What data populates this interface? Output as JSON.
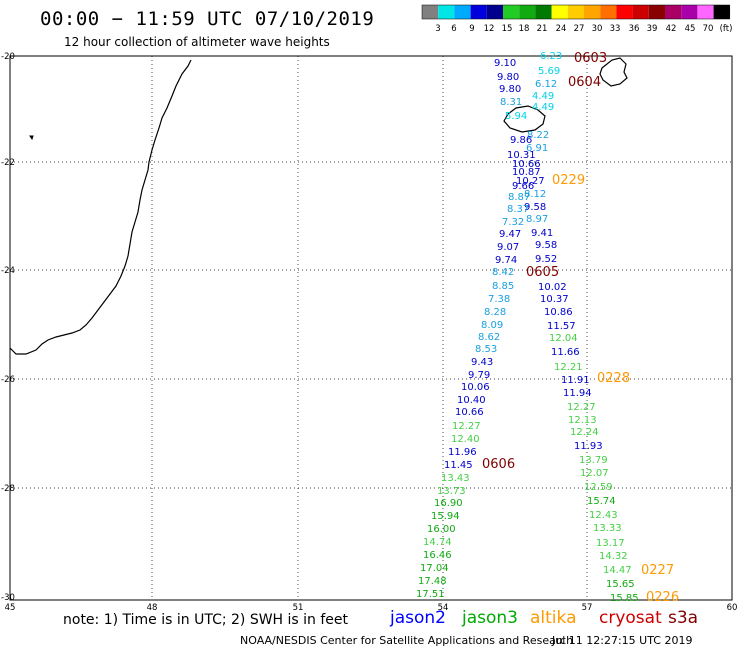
{
  "header": {
    "title": "00:00 − 11:59 UTC 07/10/2019",
    "subtitle": "12 hour collection of altimeter wave heights"
  },
  "legend": {
    "swatches": [
      "#808080",
      "#00e5e5",
      "#00aaff",
      "#0000dd",
      "#00008f",
      "#22cc22",
      "#11aa11",
      "#007a00",
      "#ffff00",
      "#ffcc00",
      "#ffa500",
      "#ff7000",
      "#ff0000",
      "#cc0000",
      "#880000",
      "#aa0066",
      "#aa00aa",
      "#ff66ff",
      "#000000"
    ],
    "ticks": [
      "3",
      "6",
      "9",
      "12",
      "15",
      "18",
      "21",
      "24",
      "27",
      "30",
      "33",
      "36",
      "39",
      "42",
      "45",
      "70",
      "(ft)"
    ]
  },
  "axes": {
    "x_ticks": [
      "45",
      "48",
      "51",
      "54",
      "57",
      "60"
    ],
    "y_ticks": [
      "-20",
      "-22",
      "-24",
      "-26",
      "-28",
      "-30"
    ]
  },
  "colors": {
    "cyan": "#00d2e6",
    "lightblue": "#1aa0e0",
    "blue": "#0000cc",
    "navy": "#000080",
    "lightgreen": "#44d044",
    "green": "#11aa11",
    "darkgreen": "#008000",
    "orange": "#ff9900",
    "darkred": "#800000",
    "jason2": "#0000ff",
    "jason3": "#00aa00",
    "altika": "#ff9900",
    "cryosat": "#cc0000",
    "s3a": "#800000"
  },
  "track_times": [
    {
      "text": "0603",
      "color": "darkred"
    },
    {
      "text": "0604",
      "color": "darkred"
    },
    {
      "text": "0229",
      "color": "orange"
    },
    {
      "text": "0605",
      "color": "darkred"
    },
    {
      "text": "0228",
      "color": "orange"
    },
    {
      "text": "0606",
      "color": "darkred"
    },
    {
      "text": "0227",
      "color": "orange"
    },
    {
      "text": "0226",
      "color": "orange"
    }
  ],
  "wave_heights": [
    {
      "text": "9.10",
      "color": "blue"
    },
    {
      "text": "6.23",
      "color": "cyan"
    },
    {
      "text": "9.80",
      "color": "blue"
    },
    {
      "text": "5.69",
      "color": "cyan"
    },
    {
      "text": "9.80",
      "color": "blue"
    },
    {
      "text": "6.12",
      "color": "lightblue"
    },
    {
      "text": "4.49",
      "color": "cyan"
    },
    {
      "text": "8.31",
      "color": "lightblue"
    },
    {
      "text": "4.49",
      "color": "cyan"
    },
    {
      "text": "5.94",
      "color": "cyan"
    },
    {
      "text": "8.22",
      "color": "lightblue"
    },
    {
      "text": "9.86",
      "color": "blue"
    },
    {
      "text": "6.91",
      "color": "lightblue"
    },
    {
      "text": "10.31",
      "color": "blue"
    },
    {
      "text": "10.66",
      "color": "blue"
    },
    {
      "text": "10.87",
      "color": "blue"
    },
    {
      "text": "10.27",
      "color": "blue"
    },
    {
      "text": "9.66",
      "color": "blue"
    },
    {
      "text": "8.12",
      "color": "lightblue"
    },
    {
      "text": "8.87",
      "color": "lightblue"
    },
    {
      "text": "9.58",
      "color": "blue"
    },
    {
      "text": "8.37",
      "color": "lightblue"
    },
    {
      "text": "8.97",
      "color": "lightblue"
    },
    {
      "text": "7.32",
      "color": "lightblue"
    },
    {
      "text": "9.47",
      "color": "blue"
    },
    {
      "text": "9.41",
      "color": "blue"
    },
    {
      "text": "9.07",
      "color": "blue"
    },
    {
      "text": "9.58",
      "color": "blue"
    },
    {
      "text": "9.74",
      "color": "blue"
    },
    {
      "text": "9.52",
      "color": "blue"
    },
    {
      "text": "8.42",
      "color": "lightblue"
    },
    {
      "text": "8.85",
      "color": "lightblue"
    },
    {
      "text": "10.02",
      "color": "blue"
    },
    {
      "text": "7.38",
      "color": "lightblue"
    },
    {
      "text": "10.37",
      "color": "blue"
    },
    {
      "text": "8.28",
      "color": "lightblue"
    },
    {
      "text": "10.86",
      "color": "blue"
    },
    {
      "text": "8.09",
      "color": "lightblue"
    },
    {
      "text": "11.57",
      "color": "blue"
    },
    {
      "text": "8.62",
      "color": "lightblue"
    },
    {
      "text": "12.04",
      "color": "lightgreen"
    },
    {
      "text": "8.53",
      "color": "lightblue"
    },
    {
      "text": "11.66",
      "color": "blue"
    },
    {
      "text": "9.43",
      "color": "blue"
    },
    {
      "text": "12.21",
      "color": "lightgreen"
    },
    {
      "text": "9.79",
      "color": "blue"
    },
    {
      "text": "11.91",
      "color": "blue"
    },
    {
      "text": "10.06",
      "color": "blue"
    },
    {
      "text": "11.94",
      "color": "blue"
    },
    {
      "text": "10.40",
      "color": "blue"
    },
    {
      "text": "12.27",
      "color": "lightgreen"
    },
    {
      "text": "10.66",
      "color": "blue"
    },
    {
      "text": "12.13",
      "color": "lightgreen"
    },
    {
      "text": "12.27",
      "color": "lightgreen"
    },
    {
      "text": "12.24",
      "color": "lightgreen"
    },
    {
      "text": "12.40",
      "color": "lightgreen"
    },
    {
      "text": "11.93",
      "color": "blue"
    },
    {
      "text": "11.96",
      "color": "blue"
    },
    {
      "text": "13.79",
      "color": "lightgreen"
    },
    {
      "text": "11.45",
      "color": "blue"
    },
    {
      "text": "12.07",
      "color": "lightgreen"
    },
    {
      "text": "13.43",
      "color": "lightgreen"
    },
    {
      "text": "12.59",
      "color": "lightgreen"
    },
    {
      "text": "13.73",
      "color": "lightgreen"
    },
    {
      "text": "15.74",
      "color": "green"
    },
    {
      "text": "16.90",
      "color": "green"
    },
    {
      "text": "12.43",
      "color": "lightgreen"
    },
    {
      "text": "15.94",
      "color": "green"
    },
    {
      "text": "13.33",
      "color": "lightgreen"
    },
    {
      "text": "16.00",
      "color": "green"
    },
    {
      "text": "13.17",
      "color": "lightgreen"
    },
    {
      "text": "14.74",
      "color": "lightgreen"
    },
    {
      "text": "14.32",
      "color": "lightgreen"
    },
    {
      "text": "16.46",
      "color": "green"
    },
    {
      "text": "14.47",
      "color": "lightgreen"
    },
    {
      "text": "17.04",
      "color": "green"
    },
    {
      "text": "15.65",
      "color": "green"
    },
    {
      "text": "17.48",
      "color": "green"
    },
    {
      "text": "15.85",
      "color": "green"
    },
    {
      "text": "17.51",
      "color": "green"
    }
  ],
  "footer": {
    "note": "note:  1) Time is in UTC;  2) SWH is in feet",
    "satellites": [
      {
        "name": "jason2",
        "color": "jason2"
      },
      {
        "name": "jason3",
        "color": "jason3"
      },
      {
        "name": "altika",
        "color": "altika"
      },
      {
        "name": "cryosat",
        "color": "cryosat"
      },
      {
        "name": "s3a",
        "color": "s3a"
      }
    ],
    "credit": "NOAA/NESDIS Center for Satellite Applications and Research",
    "timestamp": "Jul 11 12:27:15 UTC 2019"
  }
}
